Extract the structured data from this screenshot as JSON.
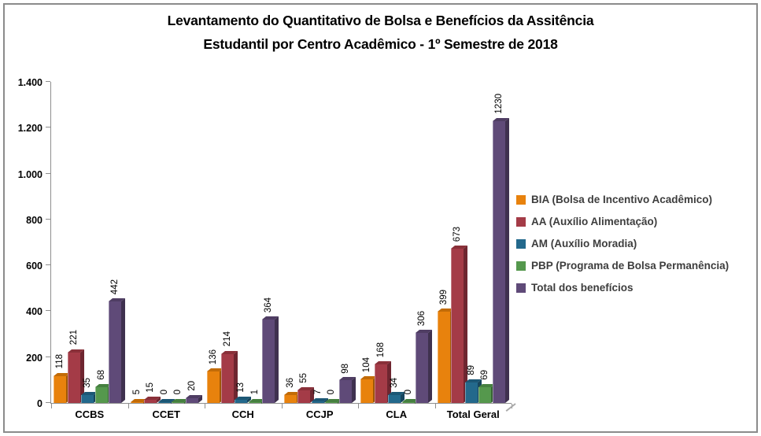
{
  "header": {
    "title_line1": "Levantamento do Quantitativo de Bolsa e Benefícios da Assitência",
    "title_line2": "Estudantil  por Centro Acadêmico - 1º Semestre de 2018"
  },
  "chart_data": {
    "type": "bar",
    "variant": "3d-clustered-column",
    "title": "Levantamento do Quantitativo de Bolsa e Benefícios da Assitência Estudantil por Centro Acadêmico - 1º Semestre de 2018",
    "categories": [
      "CCBS",
      "CCET",
      "CCH",
      "CCJP",
      "CLA",
      "Total Geral"
    ],
    "series": [
      {
        "name": "BIA (Bolsa de Incentivo Acadêmico)",
        "color": "#E8820D",
        "color_top": "#C26B07",
        "color_side": "#9F5806",
        "values": [
          118,
          5,
          136,
          36,
          104,
          399
        ]
      },
      {
        "name": "AA (Auxílio Alimentação)",
        "color": "#A43B47",
        "color_top": "#8A3039",
        "color_side": "#6E2630",
        "values": [
          221,
          15,
          214,
          55,
          168,
          673
        ]
      },
      {
        "name": "AM (Auxílio Moradia)",
        "color": "#23698C",
        "color_top": "#1C5775",
        "color_side": "#16455D",
        "values": [
          35,
          0,
          13,
          7,
          34,
          89
        ]
      },
      {
        "name": "PBP (Programa de Bolsa Permanência)",
        "color": "#55984D",
        "color_top": "#468040",
        "color_side": "#376633",
        "values": [
          68,
          0,
          1,
          0,
          0,
          69
        ]
      },
      {
        "name": "Total dos benefícios",
        "color": "#5F4A78",
        "color_top": "#4F3D63",
        "color_side": "#3F314F",
        "values": [
          442,
          20,
          364,
          98,
          306,
          1230
        ]
      }
    ],
    "xlabel": "",
    "ylabel": "",
    "ylim": [
      0,
      1400
    ],
    "ytick_step": 200,
    "ytick_labels": [
      "0",
      "200",
      "400",
      "600",
      "800",
      "1.000",
      "1.200",
      "1.400"
    ],
    "grid": false,
    "legend_position": "right",
    "value_labels": "rotated-vertical-above-bars",
    "axis_color": "#8E8E8E",
    "border_color": "#8B8B8B"
  }
}
